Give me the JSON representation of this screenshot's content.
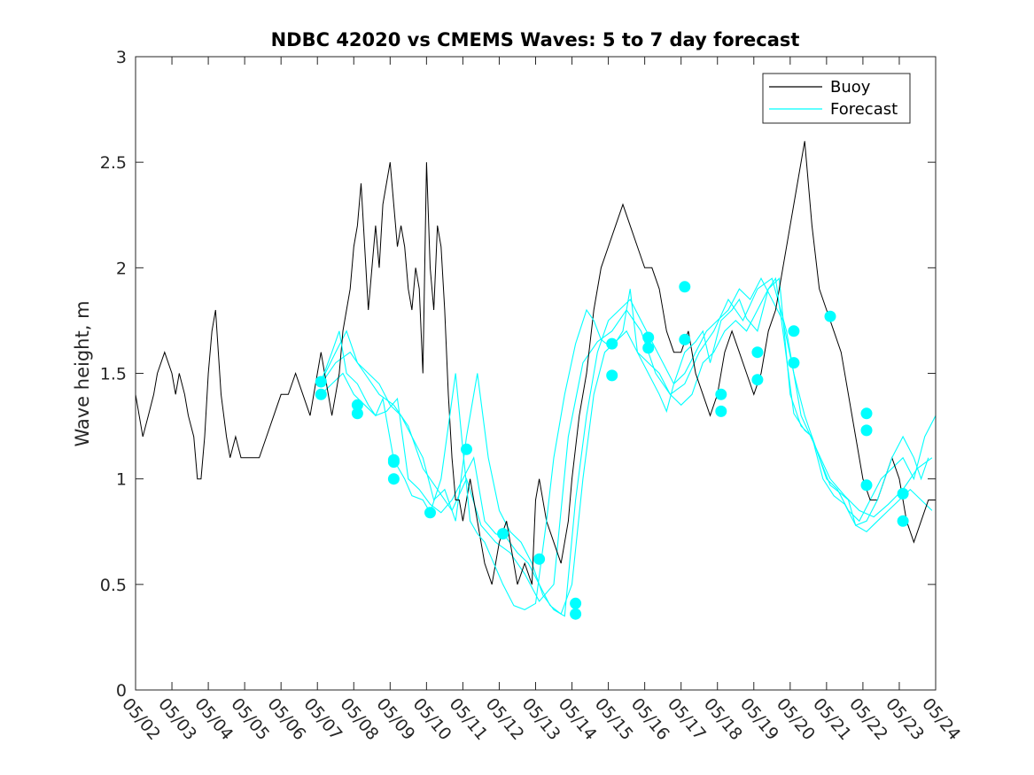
{
  "chart_data": {
    "type": "line",
    "title": "NDBC 42020 vs CMEMS Waves: 5 to 7 day forecast",
    "xlabel": "",
    "ylabel": "Wave height, m",
    "x_ticks": [
      "05/02",
      "05/03",
      "05/04",
      "05/05",
      "05/06",
      "05/07",
      "05/08",
      "05/09",
      "05/10",
      "05/11",
      "05/12",
      "05/13",
      "05/14",
      "05/15",
      "05/16",
      "05/17",
      "05/18",
      "05/19",
      "05/20",
      "05/21",
      "05/22",
      "05/23",
      "05/24"
    ],
    "y_ticks": [
      0,
      0.5,
      1,
      1.5,
      2,
      2.5,
      3
    ],
    "ylim": [
      0,
      3
    ],
    "xlim_days": [
      0,
      22
    ],
    "grid": false,
    "legend_position": "top-right",
    "colors": {
      "buoy": "#000000",
      "forecast": "#00ffff",
      "axis": "#262626"
    },
    "series": [
      {
        "name": "Buoy",
        "x": [
          0,
          0.1,
          0.2,
          0.35,
          0.5,
          0.6,
          0.8,
          1.0,
          1.1,
          1.2,
          1.35,
          1.45,
          1.6,
          1.7,
          1.8,
          1.9,
          2.0,
          2.1,
          2.2,
          2.35,
          2.5,
          2.6,
          2.75,
          2.9,
          3.0,
          3.2,
          3.4,
          3.6,
          3.8,
          4.0,
          4.2,
          4.4,
          4.6,
          4.8,
          5.0,
          5.1,
          5.2,
          5.3,
          5.4,
          5.5,
          5.6,
          5.7,
          5.8,
          5.9,
          6.0,
          6.1,
          6.2,
          6.3,
          6.4,
          6.5,
          6.6,
          6.7,
          6.8,
          6.9,
          7.0,
          7.1,
          7.2,
          7.3,
          7.4,
          7.5,
          7.6,
          7.7,
          7.8,
          7.9,
          8.0,
          8.1,
          8.2,
          8.3,
          8.4,
          8.5,
          8.6,
          8.7,
          8.8,
          8.9,
          9.0,
          9.1,
          9.2,
          9.3,
          9.4,
          9.6,
          9.8,
          10.0,
          10.2,
          10.3,
          10.5,
          10.7,
          10.9,
          11.0,
          11.1,
          11.3,
          11.5,
          11.7,
          11.9,
          12.0,
          12.2,
          12.4,
          12.6,
          12.8,
          13.0,
          13.2,
          13.4,
          13.6,
          13.8,
          14.0,
          14.2,
          14.4,
          14.6,
          14.8,
          15.0,
          15.2,
          15.4,
          15.6,
          15.8,
          16.0,
          16.2,
          16.4,
          16.6,
          16.8,
          17.0,
          17.2,
          17.4,
          17.6,
          17.8,
          18.0,
          18.2,
          18.4,
          18.6,
          18.8,
          19.0,
          19.2,
          19.4,
          19.6,
          19.8,
          20.0,
          20.2,
          20.4,
          20.6,
          20.8,
          21.0,
          21.2,
          21.4,
          21.6,
          21.8,
          22.0
        ],
        "values": [
          1.4,
          1.3,
          1.2,
          1.3,
          1.4,
          1.5,
          1.6,
          1.5,
          1.4,
          1.5,
          1.4,
          1.3,
          1.2,
          1.0,
          1.0,
          1.2,
          1.5,
          1.7,
          1.8,
          1.4,
          1.2,
          1.1,
          1.2,
          1.1,
          1.1,
          1.1,
          1.1,
          1.2,
          1.3,
          1.4,
          1.4,
          1.5,
          1.4,
          1.3,
          1.5,
          1.6,
          1.5,
          1.4,
          1.3,
          1.4,
          1.5,
          1.7,
          1.8,
          1.9,
          2.1,
          2.2,
          2.4,
          2.1,
          1.8,
          2.0,
          2.2,
          2.0,
          2.3,
          2.4,
          2.5,
          2.3,
          2.1,
          2.2,
          2.1,
          1.9,
          1.8,
          2.0,
          1.9,
          1.5,
          2.5,
          2.0,
          1.8,
          2.2,
          2.1,
          1.8,
          1.4,
          1.1,
          0.9,
          0.9,
          0.8,
          0.9,
          1.0,
          0.9,
          0.8,
          0.6,
          0.5,
          0.7,
          0.8,
          0.7,
          0.5,
          0.6,
          0.5,
          0.9,
          1.0,
          0.8,
          0.7,
          0.6,
          0.8,
          1.0,
          1.3,
          1.5,
          1.8,
          2.0,
          2.1,
          2.2,
          2.3,
          2.2,
          2.1,
          2.0,
          2.0,
          1.9,
          1.7,
          1.6,
          1.6,
          1.7,
          1.5,
          1.4,
          1.3,
          1.4,
          1.6,
          1.7,
          1.6,
          1.5,
          1.4,
          1.5,
          1.7,
          1.8,
          2.0,
          2.2,
          2.4,
          2.6,
          2.2,
          1.9,
          1.8,
          1.7,
          1.6,
          1.4,
          1.2,
          1.0,
          0.9,
          0.9,
          1.0,
          1.1,
          1.0,
          0.8,
          0.7,
          0.8,
          0.9,
          0.9
        ]
      },
      {
        "name": "Forecast",
        "x": [
          5.1,
          5.4,
          5.6,
          5.8,
          6.1,
          6.4,
          6.6,
          6.8,
          7.1,
          7.4,
          7.6,
          7.9,
          8.1,
          8.4,
          8.6,
          8.8,
          9.0,
          9.2,
          9.4,
          9.6,
          9.8,
          10.1,
          10.4,
          10.7,
          11.0,
          11.3,
          11.5,
          11.8,
          12.1,
          12.4,
          12.6,
          12.8,
          13.1,
          13.4,
          13.6,
          13.8,
          14.1,
          14.4,
          14.6,
          14.8,
          15.1,
          15.4,
          15.6,
          15.8,
          16.1,
          16.4,
          16.6,
          16.8,
          17.1,
          17.4,
          17.6,
          17.8,
          18.1,
          18.4,
          18.6,
          18.8,
          19.1,
          19.4,
          19.6,
          19.8,
          20.1,
          20.4,
          20.6,
          20.8,
          21.1,
          21.4,
          21.6,
          21.8
        ],
        "values": [
          1.46,
          1.6,
          1.7,
          1.5,
          1.45,
          1.35,
          1.3,
          1.38,
          1.09,
          1.0,
          0.92,
          0.9,
          0.84,
          1.0,
          1.25,
          1.5,
          1.14,
          0.8,
          0.74,
          0.7,
          0.62,
          0.5,
          0.4,
          0.38,
          0.41,
          0.8,
          1.1,
          1.4,
          1.64,
          1.8,
          1.75,
          1.66,
          1.62,
          1.7,
          1.9,
          1.6,
          1.5,
          1.4,
          1.32,
          1.45,
          1.6,
          1.65,
          1.7,
          1.55,
          1.75,
          1.8,
          1.85,
          1.76,
          1.7,
          1.9,
          1.95,
          1.7,
          1.31,
          1.23,
          1.2,
          1.1,
          0.97,
          0.93,
          0.9,
          0.78,
          0.8,
          0.9,
          1.0,
          1.1,
          1.2,
          1.1,
          1.0,
          1.1
        ]
      }
    ],
    "forecast_traces": [
      {
        "x": [
          5.1,
          5.5,
          5.8,
          6.1,
          6.4,
          6.7,
          7.0,
          7.3,
          7.6,
          7.9,
          8.2,
          8.5,
          8.8,
          9.1,
          9.4,
          9.7,
          10.0,
          10.3,
          10.6,
          10.9,
          11.2,
          11.5,
          11.8,
          12.1,
          12.4,
          12.7,
          13.0,
          13.3,
          13.6,
          13.9,
          14.2,
          14.5,
          14.8,
          15.1,
          15.4,
          15.7,
          16.0,
          16.3,
          16.6,
          16.9,
          17.2,
          17.5,
          17.8,
          18.1,
          18.4,
          18.7,
          19.0,
          19.3,
          19.6,
          19.9,
          20.2,
          20.5,
          20.8,
          21.1,
          21.4,
          21.7,
          22.0
        ],
        "values": [
          1.46,
          1.6,
          1.7,
          1.55,
          1.5,
          1.45,
          1.35,
          1.3,
          1.2,
          1.1,
          0.9,
          0.95,
          0.8,
          1.2,
          1.5,
          1.1,
          0.85,
          0.75,
          0.7,
          0.6,
          0.45,
          0.38,
          0.35,
          0.9,
          1.3,
          1.6,
          1.75,
          1.8,
          1.85,
          1.75,
          1.65,
          1.55,
          1.45,
          1.5,
          1.6,
          1.7,
          1.75,
          1.8,
          1.9,
          1.85,
          1.95,
          1.85,
          1.75,
          1.5,
          1.3,
          1.15,
          1.0,
          0.95,
          0.85,
          0.8,
          0.9,
          1.0,
          1.05,
          1.1,
          1.0,
          1.2,
          1.3
        ]
      },
      {
        "x": [
          5.1,
          5.4,
          5.7,
          6.0,
          6.3,
          6.6,
          6.9,
          7.2,
          7.5,
          7.8,
          8.1,
          8.4,
          8.7,
          9.0,
          9.3,
          9.6,
          9.9,
          10.2,
          10.5,
          10.8,
          11.1,
          11.4,
          11.7,
          12.0,
          12.3,
          12.6,
          12.9,
          13.2,
          13.5,
          13.8,
          14.1,
          14.4,
          14.7,
          15.0,
          15.3,
          15.6,
          15.9,
          16.2,
          16.5,
          16.8,
          17.1,
          17.4,
          17.7,
          18.0,
          18.3,
          18.6,
          18.9,
          19.2,
          19.5,
          19.8,
          20.1,
          20.4,
          20.7,
          21.0,
          21.3,
          21.6,
          21.9
        ],
        "values": [
          1.4,
          1.45,
          1.5,
          1.4,
          1.35,
          1.3,
          1.32,
          1.38,
          1.0,
          0.95,
          0.88,
          0.84,
          0.9,
          1.0,
          1.1,
          0.8,
          0.74,
          0.72,
          0.65,
          0.6,
          0.5,
          0.4,
          0.36,
          0.5,
          1.0,
          1.4,
          1.6,
          1.65,
          1.7,
          1.6,
          1.55,
          1.5,
          1.4,
          1.35,
          1.4,
          1.55,
          1.6,
          1.7,
          1.75,
          1.7,
          1.8,
          1.9,
          1.95,
          1.4,
          1.25,
          1.2,
          1.0,
          0.92,
          0.88,
          0.78,
          0.75,
          0.8,
          0.85,
          0.9,
          0.95,
          0.9,
          0.85
        ]
      },
      {
        "x": [
          5.1,
          5.5,
          5.9,
          6.3,
          6.7,
          7.1,
          7.5,
          7.9,
          8.3,
          8.7,
          9.1,
          9.5,
          9.9,
          10.3,
          10.7,
          11.1,
          11.5,
          11.9,
          12.3,
          12.7,
          13.1,
          13.5,
          13.9,
          14.3,
          14.7,
          15.1,
          15.5,
          15.9,
          16.3,
          16.7,
          17.1,
          17.5,
          17.9,
          18.3,
          18.7,
          19.1,
          19.5,
          19.9,
          20.3,
          20.7,
          21.1,
          21.5,
          21.9
        ],
        "values": [
          1.45,
          1.55,
          1.6,
          1.5,
          1.4,
          1.35,
          1.25,
          1.05,
          0.95,
          0.85,
          1.0,
          0.78,
          0.7,
          0.65,
          0.55,
          0.42,
          0.5,
          1.2,
          1.55,
          1.65,
          1.7,
          1.8,
          1.7,
          1.5,
          1.4,
          1.45,
          1.6,
          1.7,
          1.85,
          1.75,
          1.9,
          1.95,
          1.7,
          1.3,
          1.15,
          1.0,
          0.92,
          0.85,
          0.82,
          0.88,
          0.95,
          1.05,
          1.1
        ]
      }
    ],
    "forecast_markers": {
      "x": [
        5.1,
        5.1,
        6.1,
        6.1,
        7.1,
        7.1,
        7.1,
        8.1,
        9.1,
        10.1,
        11.1,
        12.1,
        12.1,
        13.1,
        13.1,
        14.1,
        14.1,
        15.1,
        15.1,
        16.1,
        16.1,
        17.1,
        17.1,
        18.1,
        18.1,
        19.1,
        20.1,
        20.1,
        20.1,
        21.1,
        21.1
      ],
      "values": [
        1.46,
        1.4,
        1.35,
        1.31,
        1.09,
        1.08,
        1.0,
        0.84,
        1.14,
        0.74,
        0.62,
        0.41,
        0.36,
        1.64,
        1.49,
        1.67,
        1.62,
        1.91,
        1.66,
        1.4,
        1.32,
        1.6,
        1.47,
        1.55,
        1.7,
        1.77,
        1.31,
        1.23,
        0.97,
        0.93,
        0.8
      ]
    }
  }
}
